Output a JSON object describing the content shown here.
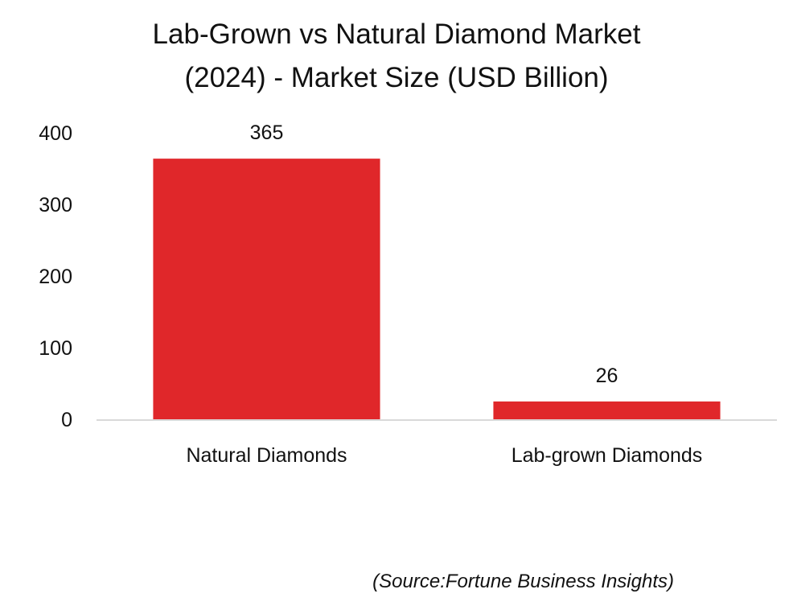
{
  "chart_data": {
    "type": "bar",
    "title": "Lab-Grown vs Natural Diamond Market (2024) - Market Size (USD Billion)",
    "title_lines": [
      "Lab-Grown vs Natural Diamond Market",
      "(2024) - Market Size (USD Billion)"
    ],
    "categories": [
      "Natural Diamonds",
      "Lab-grown Diamonds"
    ],
    "values": [
      365,
      26
    ],
    "data_labels": [
      "365",
      "26"
    ],
    "xlabel": "",
    "ylabel": "",
    "ylim": [
      0,
      400
    ],
    "yticks": [
      0,
      100,
      200,
      300,
      400
    ],
    "ytick_labels": [
      "0",
      "100",
      "200",
      "300",
      "400"
    ],
    "grid": false,
    "legend": "none",
    "bar_color": "#E0272A",
    "axis_color": "#D9D9D9"
  },
  "source_note": "(Source:Fortune Business Insights)"
}
